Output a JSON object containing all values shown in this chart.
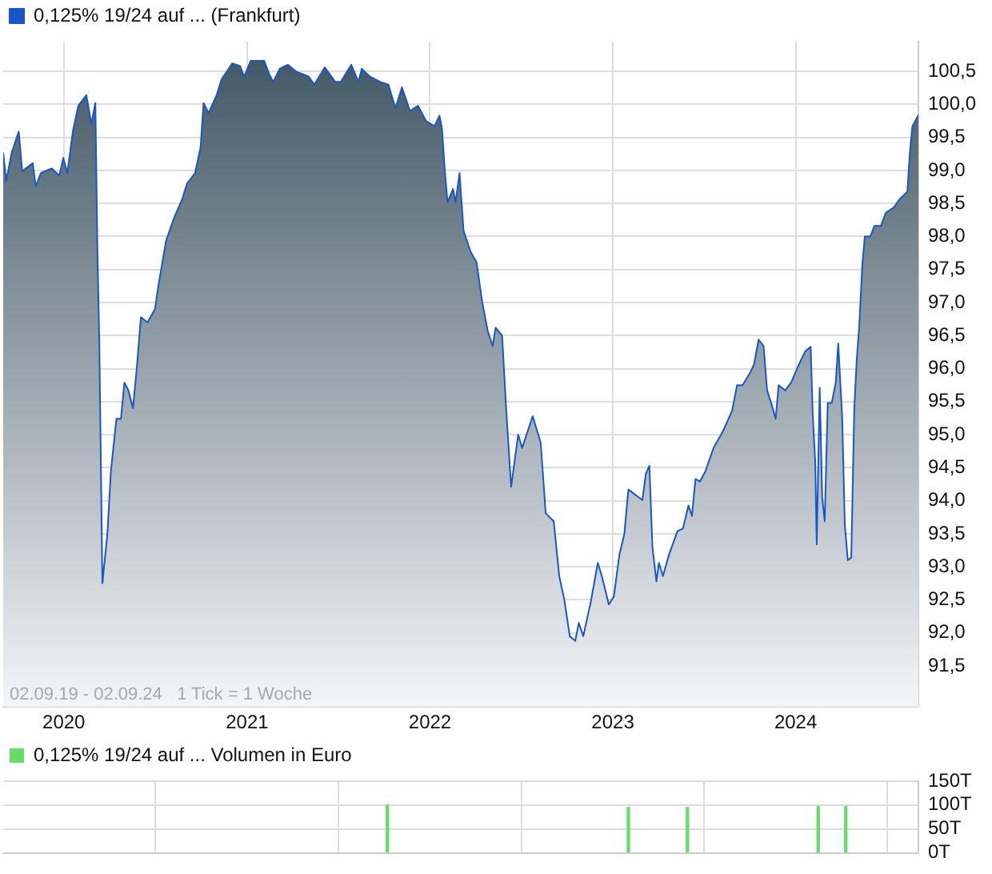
{
  "chart_data": [
    {
      "type": "area",
      "annotations": [
        "02.09.19 - 02.09.24   1 Tick = 1 Woche"
      ],
      "xlim": [
        "2019-09-02",
        "2024-09-02"
      ],
      "xticks": [
        "2020",
        "2021",
        "2022",
        "2023",
        "2024"
      ],
      "ylim": [
        90.88,
        100.95
      ],
      "yticks": [
        {
          "value": 91.5,
          "label": "91,5"
        },
        {
          "value": 92,
          "label": "92,0"
        },
        {
          "value": 92.5,
          "label": "92,5"
        },
        {
          "value": 93,
          "label": "93,0"
        },
        {
          "value": 93.5,
          "label": "93,5"
        },
        {
          "value": 94,
          "label": "94,0"
        },
        {
          "value": 94.5,
          "label": "94,5"
        },
        {
          "value": 95,
          "label": "95,0"
        },
        {
          "value": 95.5,
          "label": "95,5"
        },
        {
          "value": 96,
          "label": "96,0"
        },
        {
          "value": 96.5,
          "label": "96,5"
        },
        {
          "value": 97,
          "label": "97,0"
        },
        {
          "value": 97.5,
          "label": "97,5"
        },
        {
          "value": 98,
          "label": "98,0"
        },
        {
          "value": 98.5,
          "label": "98,5"
        },
        {
          "value": 99,
          "label": "99,0"
        },
        {
          "value": 99.5,
          "label": "99,5"
        },
        {
          "value": 100,
          "label": "100,0"
        },
        {
          "value": 100.5,
          "label": "100,5"
        }
      ],
      "grid": true,
      "legend": "top left",
      "series": [
        {
          "name": "0,125% 19/24 auf ... (Frankfurt)",
          "color": "#1a56c8",
          "x": [
            "2019-09-02",
            "2019-09-08",
            "2019-09-19",
            "2019-10-03",
            "2019-10-10",
            "2019-10-31",
            "2019-11-06",
            "2019-11-16",
            "2019-12-08",
            "2019-12-23",
            "2019-12-31",
            "2020-01-08",
            "2020-01-19",
            "2020-01-30",
            "2020-02-15",
            "2020-02-25",
            "2020-03-04",
            "2020-03-08",
            "2020-03-12",
            "2020-03-18",
            "2020-03-28",
            "2020-04-04",
            "2020-04-15",
            "2020-04-24",
            "2020-05-01",
            "2020-05-09",
            "2020-05-18",
            "2020-05-25",
            "2020-06-03",
            "2020-06-16",
            "2020-07-01",
            "2020-07-07",
            "2020-07-23",
            "2020-08-08",
            "2020-08-24",
            "2020-09-03",
            "2020-09-19",
            "2020-09-30",
            "2020-10-06",
            "2020-10-16",
            "2020-11-01",
            "2020-11-11",
            "2020-12-02",
            "2020-12-18",
            "2020-12-26",
            "2021-01-08",
            "2021-02-04",
            "2021-02-14",
            "2021-02-22",
            "2021-03-07",
            "2021-03-23",
            "2021-04-08",
            "2021-05-04",
            "2021-05-15",
            "2021-06-05",
            "2021-06-26",
            "2021-07-07",
            "2021-07-28",
            "2021-08-11",
            "2021-08-18",
            "2021-09-03",
            "2021-09-24",
            "2021-10-10",
            "2021-10-24",
            "2021-11-06",
            "2021-11-22",
            "2021-12-08",
            "2021-12-24",
            "2022-01-10",
            "2022-01-20",
            "2022-01-25",
            "2022-01-31",
            "2022-02-05",
            "2022-02-16",
            "2022-02-21",
            "2022-03-01",
            "2022-03-09",
            "2022-03-23",
            "2022-04-04",
            "2022-04-15",
            "2022-04-26",
            "2022-05-06",
            "2022-05-12",
            "2022-05-25",
            "2022-06-02",
            "2022-06-12",
            "2022-06-26",
            "2022-07-04",
            "2022-07-25",
            "2022-08-10",
            "2022-08-20",
            "2022-09-05",
            "2022-09-16",
            "2022-09-26",
            "2022-10-07",
            "2022-10-18",
            "2022-10-25",
            "2022-11-03",
            "2022-11-18",
            "2022-12-02",
            "2022-12-10",
            "2022-12-24",
            "2023-01-03",
            "2023-01-14",
            "2023-01-24",
            "2023-02-01",
            "2023-02-22",
            "2023-03-01",
            "2023-03-08",
            "2023-03-15",
            "2023-03-21",
            "2023-03-29",
            "2023-04-03",
            "2023-04-11",
            "2023-04-23",
            "2023-05-10",
            "2023-05-21",
            "2023-06-01",
            "2023-06-08",
            "2023-06-15",
            "2023-06-24",
            "2023-07-05",
            "2023-07-21",
            "2023-08-08",
            "2023-08-27",
            "2023-09-06",
            "2023-09-17",
            "2023-10-03",
            "2023-10-10",
            "2023-10-19",
            "2023-10-29",
            "2023-11-05",
            "2023-11-14",
            "2023-11-22",
            "2023-11-28",
            "2023-12-11",
            "2023-12-23",
            "2024-01-06",
            "2024-01-20",
            "2024-01-31",
            "2024-02-04",
            "2024-02-09",
            "2024-02-12",
            "2024-02-18",
            "2024-02-23",
            "2024-02-28",
            "2024-03-05",
            "2024-03-13",
            "2024-03-21",
            "2024-03-26",
            "2024-04-03",
            "2024-04-08",
            "2024-04-14",
            "2024-04-21",
            "2024-04-27",
            "2024-05-02",
            "2024-05-07",
            "2024-05-13",
            "2024-05-18",
            "2024-05-29",
            "2024-06-06",
            "2024-06-19",
            "2024-06-29",
            "2024-07-15",
            "2024-07-26",
            "2024-08-11",
            "2024-08-16",
            "2024-08-21",
            "2024-09-02"
          ],
          "values": [
            99.27,
            98.84,
            99.27,
            99.59,
            98.99,
            99.11,
            98.76,
            98.96,
            99.03,
            98.92,
            99.19,
            98.96,
            99.59,
            99.98,
            100.14,
            99.71,
            100.02,
            97.85,
            96.34,
            92.75,
            93.5,
            94.45,
            95.24,
            95.24,
            95.79,
            95.67,
            95.4,
            95.95,
            96.78,
            96.7,
            96.9,
            97.22,
            97.93,
            98.28,
            98.56,
            98.8,
            98.96,
            99.35,
            100.02,
            99.87,
            100.14,
            100.38,
            100.62,
            100.58,
            100.42,
            100.66,
            100.66,
            100.46,
            100.34,
            100.54,
            100.6,
            100.5,
            100.42,
            100.3,
            100.56,
            100.34,
            100.34,
            100.6,
            100.34,
            100.54,
            100.42,
            100.34,
            100.3,
            99.94,
            100.26,
            99.9,
            99.98,
            99.75,
            99.67,
            99.83,
            99.63,
            98.96,
            98.52,
            98.72,
            98.52,
            98.96,
            98.09,
            97.77,
            97.61,
            97.02,
            96.58,
            96.34,
            96.62,
            96.5,
            95.4,
            94.21,
            95.0,
            94.8,
            95.28,
            94.88,
            93.81,
            93.69,
            92.86,
            92.51,
            91.95,
            91.88,
            92.15,
            91.95,
            92.47,
            93.06,
            92.86,
            92.43,
            92.55,
            93.18,
            93.5,
            94.17,
            94.05,
            94.01,
            94.41,
            94.53,
            93.3,
            92.78,
            93.06,
            92.86,
            93.18,
            93.54,
            93.58,
            93.93,
            93.77,
            94.33,
            94.29,
            94.45,
            94.8,
            95.04,
            95.36,
            95.75,
            95.75,
            95.95,
            96.07,
            96.44,
            96.34,
            95.67,
            95.46,
            95.24,
            95.75,
            95.67,
            95.79,
            96.04,
            96.26,
            96.33,
            95.32,
            94.6,
            93.34,
            95.71,
            94.05,
            93.69,
            95.48,
            95.48,
            95.79,
            96.38,
            95.24,
            93.65,
            93.1,
            93.14,
            95.4,
            96.15,
            96.66,
            97.57,
            98.0,
            98.0,
            98.16,
            98.16,
            98.36,
            98.44,
            98.56,
            98.68,
            99.27,
            99.67,
            99.84
          ]
        }
      ]
    },
    {
      "type": "bar",
      "tick_labels": "y",
      "grid": true,
      "legend": "top left",
      "xlim": [
        "2019-09-02",
        "2024-09-02"
      ],
      "xticks": [
        "2020",
        "2021",
        "2022",
        "2023",
        "2024"
      ],
      "ylim": [
        0,
        150
      ],
      "yticks": [
        {
          "value": 0,
          "label": "0T"
        },
        {
          "value": 50,
          "label": "50T"
        },
        {
          "value": 100,
          "label": "100T"
        },
        {
          "value": 150,
          "label": "150T"
        }
      ],
      "series": [
        {
          "name": "0,125% 19/24 auf ... Volumen in Euro",
          "color": "#66dd66",
          "x": [
            "2021-10-08",
            "2023-02-01",
            "2023-05-30",
            "2024-02-15",
            "2024-04-10"
          ],
          "values": [
            100,
            95,
            95,
            97,
            97
          ]
        }
      ]
    }
  ]
}
